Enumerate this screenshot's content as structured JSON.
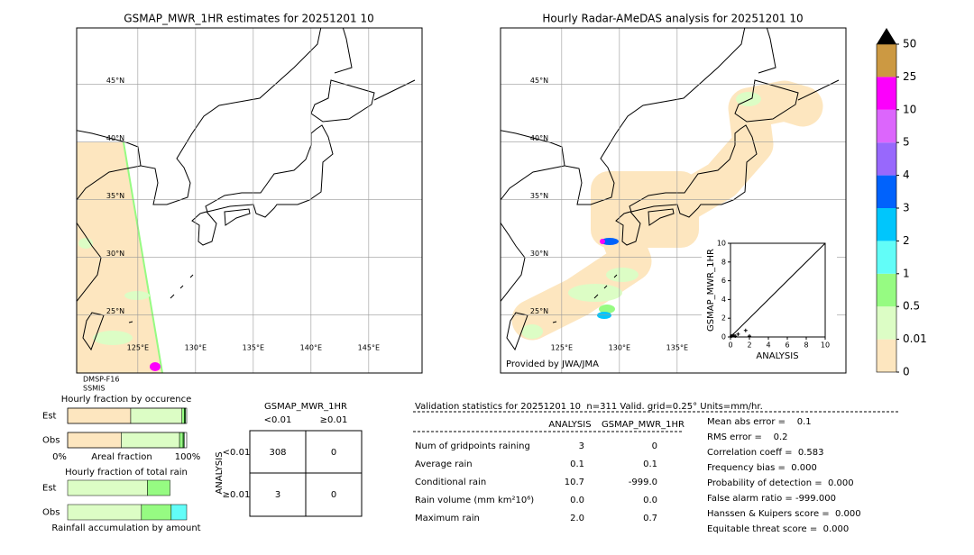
{
  "left_map": {
    "title": "GSMAP_MWR_1HR estimates for 20251201 10",
    "lat_ticks": [
      {
        "value": 45,
        "label": "45°N"
      },
      {
        "value": 40,
        "label": "40°N"
      },
      {
        "value": 35,
        "label": "35°N"
      },
      {
        "value": 30,
        "label": "30°N"
      },
      {
        "value": 25,
        "label": "25°N"
      }
    ],
    "lon_ticks": [
      {
        "value": 125,
        "label": "125°E"
      },
      {
        "value": 130,
        "label": "130°E"
      },
      {
        "value": 135,
        "label": "135°E"
      },
      {
        "value": 140,
        "label": "140°E"
      },
      {
        "value": 145,
        "label": "145°E"
      }
    ],
    "satellite": [
      "DMSP-F16",
      "SSMIS"
    ]
  },
  "right_map": {
    "title": "Hourly Radar-AMeDAS analysis for 20251201 10",
    "lat_ticks": [
      {
        "value": 45,
        "label": "45°N"
      },
      {
        "value": 40,
        "label": "40°N"
      },
      {
        "value": 35,
        "label": "35°N"
      },
      {
        "value": 30,
        "label": "30°N"
      },
      {
        "value": 25,
        "label": "25°N"
      }
    ],
    "lon_ticks": [
      {
        "value": 125,
        "label": "125°E"
      },
      {
        "value": 130,
        "label": "130°E"
      },
      {
        "value": 135,
        "label": "135°E"
      }
    ],
    "credit": "Provided by JWA/JMA"
  },
  "scatter": {
    "type": "scatter",
    "xlabel": "ANALYSIS",
    "ylabel": "GSMAP_MWR_1HR",
    "xlim": [
      0,
      10
    ],
    "ylim": [
      0,
      10
    ],
    "xticks": [
      0,
      2,
      4,
      6,
      8,
      10
    ],
    "yticks": [
      0,
      2,
      4,
      6,
      8,
      10
    ],
    "x": [
      0.1,
      0.3,
      0.5,
      0.8,
      1.6,
      2.0
    ],
    "y": [
      0.1,
      0.2,
      0.1,
      0.3,
      0.7,
      0.1
    ]
  },
  "colorbar": {
    "levels": [
      0,
      0.01,
      0.5,
      1,
      2,
      3,
      4,
      5,
      10,
      25,
      50
    ],
    "colors": [
      "#fde6bf",
      "#dcfdc5",
      "#96fb82",
      "#62fdf8",
      "#00c6fc",
      "#0062fc",
      "#9868fc",
      "#dc66fc",
      "#fc00fc",
      "#cc9942"
    ],
    "over_color": "#000000"
  },
  "occurrence": {
    "title": "Hourly fraction by occurence",
    "xlabel": "Areal fraction",
    "xmin_label": "0%",
    "xmax_label": "100%",
    "colors": [
      "#fde6bf",
      "#dcfdc5",
      "#96fb82",
      "#2a9d2a"
    ],
    "rows": [
      {
        "label": "Est",
        "values": [
          53,
          43,
          2,
          1
        ]
      },
      {
        "label": "Obs",
        "values": [
          45,
          49,
          3,
          1
        ]
      }
    ]
  },
  "total_rain": {
    "title": "Hourly fraction of total rain",
    "xlabel": "Rainfall accumulation by amount",
    "colors": [
      "#fde6bf",
      "#dcfdc5",
      "#96fb82",
      "#62fdf8"
    ],
    "rows": [
      {
        "label": "Est",
        "values": [
          0,
          67,
          19,
          0
        ]
      },
      {
        "label": "Obs",
        "values": [
          0,
          62,
          25,
          13
        ]
      }
    ]
  },
  "contingency": {
    "header": "GSMAP_MWR_1HR",
    "columns": [
      "<0.01",
      "≥0.01"
    ],
    "row_title": "ANALYSIS",
    "rows": [
      "<0.01",
      "≥0.01"
    ],
    "cells": [
      [
        308,
        0
      ],
      [
        3,
        0
      ]
    ]
  },
  "validation": {
    "title": "Validation statistics for 20251201 10  n=311 Valid. grid=0.25° Units=mm/hr.",
    "columns": [
      "ANALYSIS",
      "GSMAP_MWR_1HR"
    ],
    "rows": [
      {
        "label": "Num of gridpoints raining",
        "analysis": "3",
        "gsmap": "0"
      },
      {
        "label": "Average rain",
        "analysis": "0.1",
        "gsmap": "0.1"
      },
      {
        "label": "Conditional rain",
        "analysis": "10.7",
        "gsmap": "-999.0"
      },
      {
        "label": "Rain volume (mm km²10⁶)",
        "analysis": "0.0",
        "gsmap": "0.0"
      },
      {
        "label": "Maximum rain",
        "analysis": "2.0",
        "gsmap": "0.7"
      }
    ],
    "scores": [
      "Mean abs error =    0.1",
      "RMS error =    0.2",
      "Correlation coeff =  0.583",
      "Frequency bias =  0.000",
      "Probability of detection =  0.000",
      "False alarm ratio = -999.000",
      "Hanssen & Kuipers score =  0.000",
      "Equitable threat score =  0.000"
    ]
  }
}
